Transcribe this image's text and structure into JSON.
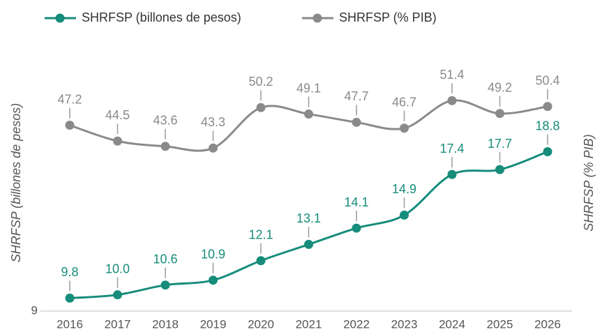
{
  "chart_data": {
    "type": "line",
    "y_label": "SHRFSP (billones de pesos)",
    "y2_label": "SHRFSP (% PIB)",
    "categories": [
      "2016",
      "2017",
      "2018",
      "2019",
      "2020",
      "2021",
      "2022",
      "2023",
      "2024",
      "2025",
      "2026"
    ],
    "series": [
      {
        "name": "SHRFSP (billones de pesos)",
        "color": "#168c7a",
        "values": [
          9.8,
          10.0,
          10.6,
          10.9,
          12.1,
          13.1,
          14.1,
          14.9,
          17.4,
          17.7,
          18.8
        ],
        "value_labels": [
          "9.8",
          "10.0",
          "10.6",
          "10.9",
          "12.1",
          "13.1",
          "14.1",
          "14.9",
          "17.4",
          "17.7",
          "18.8"
        ]
      },
      {
        "name": "SHRFSP (% PIB)",
        "color": "#8a8a8a",
        "axis": "y2",
        "values": [
          47.2,
          44.5,
          43.6,
          43.3,
          50.2,
          49.1,
          47.7,
          46.7,
          51.4,
          49.2,
          50.4
        ]
      }
    ],
    "ylim": [
      9,
      28
    ],
    "yticks": [
      9
    ],
    "y2lim": [
      15.5,
      68.2
    ],
    "legend": "top"
  }
}
